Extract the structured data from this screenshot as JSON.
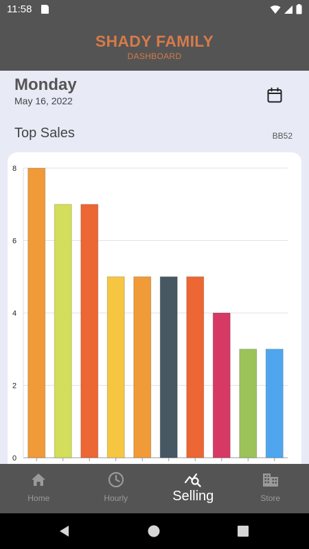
{
  "status_bar": {
    "time": "11:58"
  },
  "header": {
    "title": "SHADY FAMILY",
    "subtitle": "DASHBOARD"
  },
  "date": {
    "day": "Monday",
    "date": "May 16, 2022"
  },
  "section": {
    "title": "Top Sales",
    "store_code": "BB52"
  },
  "chart_data": {
    "type": "bar",
    "values": [
      8,
      7,
      7,
      5,
      5,
      5,
      5,
      4,
      3,
      3
    ],
    "colors": [
      "#f09a38",
      "#d3de5a",
      "#ec6733",
      "#f6c643",
      "#f09a38",
      "#475862",
      "#ec6733",
      "#d63a64",
      "#9bc35a",
      "#4fa6ee"
    ],
    "yticks": [
      0,
      2,
      4,
      6,
      8
    ],
    "ylim": [
      0,
      8
    ],
    "grid": true
  },
  "bottom_nav": {
    "items": [
      {
        "label": "Home",
        "icon": "home-icon"
      },
      {
        "label": "Hourly",
        "icon": "clock-icon"
      },
      {
        "label": "Selling",
        "icon": "trend-search-icon",
        "active": true
      },
      {
        "label": "Store",
        "icon": "building-icon"
      }
    ]
  }
}
